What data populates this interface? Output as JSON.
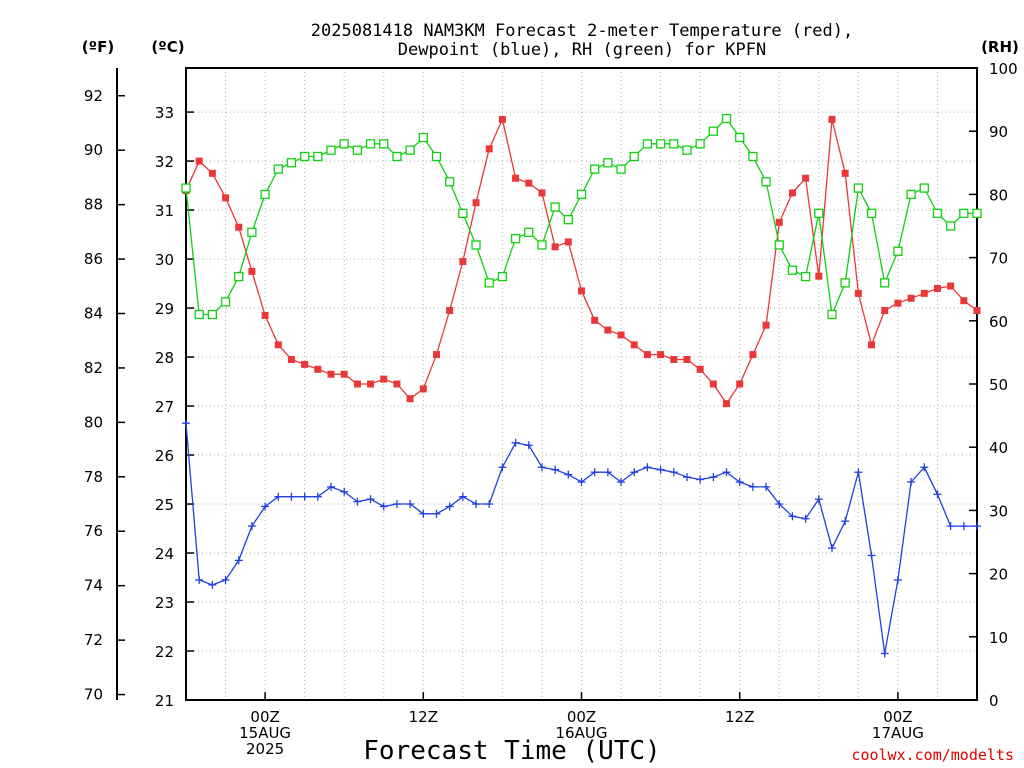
{
  "chart_data": {
    "type": "line",
    "title_lines": [
      "2025081418 NAM3KM Forecast 2-meter Temperature (red),",
      "Dewpoint (blue), RH (green) for KPFN"
    ],
    "xlabel": "Forecast Time (UTC)",
    "credit": "coolwx.com/modelts",
    "axis_units": {
      "fahrenheit": "(ºF)",
      "celsius": "(ºC)",
      "rh": "(RH)"
    },
    "x_hours_range": [
      0,
      60
    ],
    "x_ticks": [
      {
        "hour": 6,
        "lines": [
          "00Z",
          "15AUG",
          "2025"
        ]
      },
      {
        "hour": 18,
        "lines": [
          "12Z"
        ]
      },
      {
        "hour": 30,
        "lines": [
          "00Z",
          "16AUG"
        ]
      },
      {
        "hour": 42,
        "lines": [
          "12Z"
        ]
      },
      {
        "hour": 54,
        "lines": [
          "00Z",
          "17AUG"
        ]
      }
    ],
    "celsius_range": [
      21,
      33.9
    ],
    "celsius_ticks": [
      21,
      22,
      23,
      24,
      25,
      26,
      27,
      28,
      29,
      30,
      31,
      32,
      33
    ],
    "fahrenheit_ticks": [
      70,
      72,
      74,
      76,
      78,
      80,
      82,
      84,
      86,
      88,
      90,
      92
    ],
    "rh_range": [
      0,
      100
    ],
    "rh_ticks": [
      0,
      10,
      20,
      30,
      40,
      50,
      60,
      70,
      80,
      90,
      100
    ],
    "series": [
      {
        "name": "2-meter Temperature",
        "axis": "celsius",
        "color": "#e83838",
        "marker": "filled-square",
        "x": [
          0,
          1,
          2,
          3,
          4,
          5,
          6,
          7,
          8,
          9,
          10,
          11,
          12,
          13,
          14,
          15,
          16,
          17,
          18,
          19,
          20,
          21,
          22,
          23,
          24,
          25,
          26,
          27,
          28,
          29,
          30,
          31,
          32,
          33,
          34,
          35,
          36,
          37,
          38,
          39,
          40,
          41,
          42,
          43,
          44,
          45,
          46,
          47,
          48,
          49,
          50,
          51,
          52,
          53,
          54,
          55,
          56,
          57,
          58,
          59,
          60
        ],
        "values": [
          31.4,
          32.0,
          31.75,
          31.25,
          30.65,
          29.75,
          28.85,
          28.25,
          27.95,
          27.85,
          27.75,
          27.65,
          27.65,
          27.45,
          27.45,
          27.55,
          27.45,
          27.15,
          27.35,
          28.05,
          28.95,
          29.95,
          31.15,
          32.25,
          32.85,
          31.65,
          31.55,
          31.35,
          30.25,
          30.35,
          29.35,
          28.75,
          28.55,
          28.45,
          28.25,
          28.05,
          28.05,
          27.95,
          27.95,
          27.75,
          27.45,
          27.05,
          27.45,
          28.05,
          28.65,
          30.75,
          31.35,
          31.65,
          29.65,
          32.85,
          31.75,
          29.3,
          28.25,
          28.95,
          29.1,
          29.2,
          29.3,
          29.4,
          29.45,
          29.15,
          28.95
        ]
      },
      {
        "name": "Dewpoint",
        "axis": "celsius",
        "color": "#2040e0",
        "marker": "plus",
        "x": [
          0,
          1,
          2,
          3,
          4,
          5,
          6,
          7,
          8,
          9,
          10,
          11,
          12,
          13,
          14,
          15,
          16,
          17,
          18,
          19,
          20,
          21,
          22,
          23,
          24,
          25,
          26,
          27,
          28,
          29,
          30,
          31,
          32,
          33,
          34,
          35,
          36,
          37,
          38,
          39,
          40,
          41,
          42,
          43,
          44,
          45,
          46,
          47,
          48,
          49,
          50,
          51,
          52,
          53,
          54,
          55,
          56,
          57,
          58,
          59,
          60
        ],
        "values": [
          26.65,
          23.45,
          23.35,
          23.45,
          23.85,
          24.55,
          24.95,
          25.15,
          25.15,
          25.15,
          25.15,
          25.35,
          25.25,
          25.05,
          25.1,
          24.95,
          25.0,
          25.0,
          24.8,
          24.8,
          24.95,
          25.15,
          25.0,
          25.0,
          25.75,
          26.25,
          26.2,
          25.75,
          25.7,
          25.6,
          25.45,
          25.65,
          25.65,
          25.45,
          25.65,
          25.75,
          25.7,
          25.65,
          25.55,
          25.5,
          25.55,
          25.65,
          25.45,
          25.35,
          25.35,
          25.0,
          24.75,
          24.7,
          25.1,
          24.1,
          24.65,
          25.65,
          23.95,
          21.95,
          23.45,
          25.45,
          25.75,
          25.2,
          24.55,
          24.55,
          24.55
        ]
      },
      {
        "name": "RH",
        "axis": "rh",
        "color": "#10d010",
        "marker": "open-square",
        "x": [
          0,
          1,
          2,
          3,
          4,
          5,
          6,
          7,
          8,
          9,
          10,
          11,
          12,
          13,
          14,
          15,
          16,
          17,
          18,
          19,
          20,
          21,
          22,
          23,
          24,
          25,
          26,
          27,
          28,
          29,
          30,
          31,
          32,
          33,
          34,
          35,
          36,
          37,
          38,
          39,
          40,
          41,
          42,
          43,
          44,
          45,
          46,
          47,
          48,
          49,
          50,
          51,
          52,
          53,
          54,
          55,
          56,
          57,
          58,
          59,
          60
        ],
        "values": [
          81,
          61,
          61,
          63,
          67,
          74,
          80,
          84,
          85,
          86,
          86,
          87,
          88,
          87,
          88,
          88,
          86,
          87,
          89,
          86,
          82,
          77,
          72,
          66,
          67,
          73,
          74,
          72,
          78,
          76,
          80,
          84,
          85,
          84,
          86,
          88,
          88,
          88,
          87,
          88,
          90,
          92,
          89,
          86,
          82,
          72,
          68,
          67,
          77,
          61,
          66,
          81,
          77,
          66,
          71,
          80,
          81,
          77,
          75,
          77,
          77
        ]
      }
    ]
  }
}
